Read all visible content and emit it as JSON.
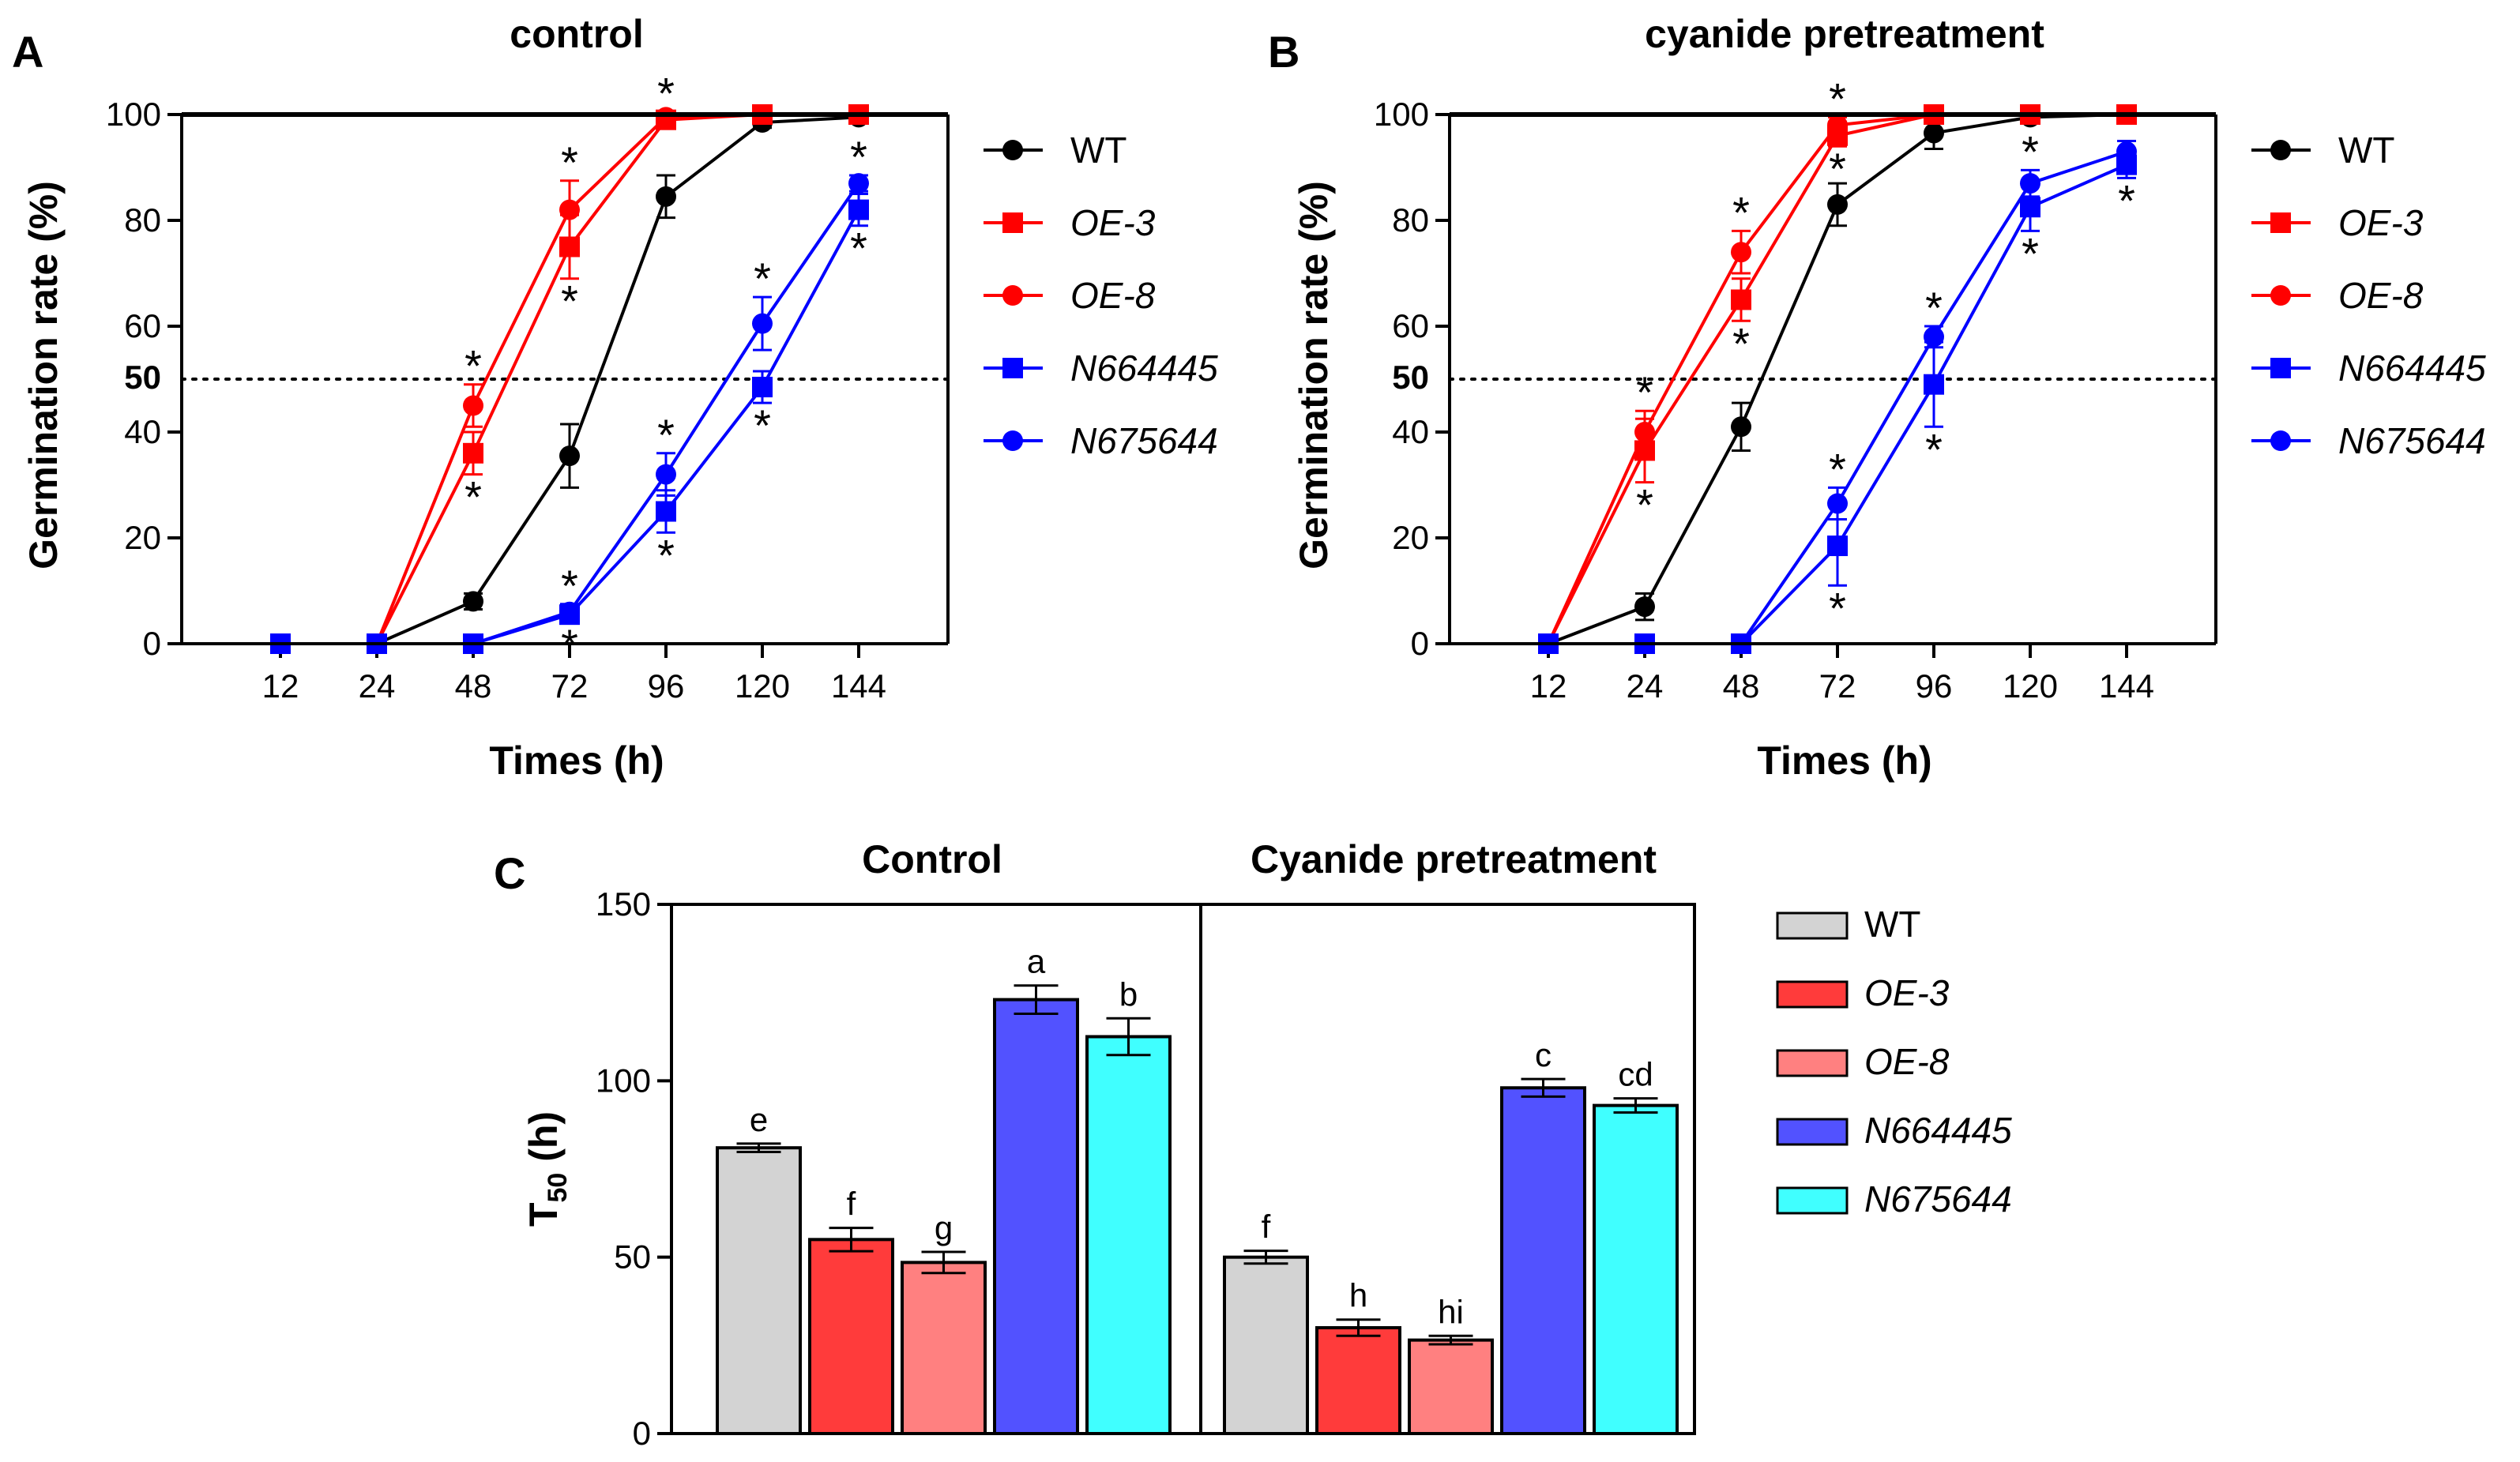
{
  "chart_data": [
    {
      "panel": "A",
      "type": "line",
      "title": "control",
      "xlabel": "Times (h)",
      "ylabel": "Germination rate (%)",
      "categories": [
        "12",
        "24",
        "48",
        "72",
        "96",
        "120",
        "144"
      ],
      "yticks": [
        "0",
        "20",
        "40",
        "50",
        "60",
        "80",
        "100"
      ],
      "ylim": [
        0,
        100
      ],
      "reference_line": 50,
      "series": [
        {
          "name": "WT",
          "italic": false,
          "color": "#000000",
          "marker": "circle",
          "values": [
            0,
            0,
            8,
            35.5,
            84.5,
            98.5,
            99.5
          ],
          "err": [
            0,
            0,
            1.5,
            6,
            4,
            1,
            0.5
          ],
          "stars": [],
          "star_pos": []
        },
        {
          "name": "OE-3",
          "italic": true,
          "color": "#ff0000",
          "marker": "square",
          "values": [
            0,
            0,
            36,
            75,
            99,
            100,
            100
          ],
          "err": [
            0,
            0,
            4,
            6,
            1,
            0,
            0
          ],
          "stars": [
            2,
            3
          ],
          "star_pos": [
            "below",
            "below"
          ]
        },
        {
          "name": "OE-8",
          "italic": true,
          "color": "#ff0000",
          "marker": "circle",
          "values": [
            0,
            0,
            45,
            82,
            99.5,
            100,
            100
          ],
          "err": [
            0,
            0,
            4,
            5.5,
            1,
            0,
            0
          ],
          "stars": [
            2,
            3,
            4
          ],
          "star_pos": [
            "above",
            "above",
            "above"
          ]
        },
        {
          "name": "N664445",
          "italic": true,
          "color": "#0000ff",
          "marker": "square",
          "values": [
            0,
            0,
            0,
            5.5,
            25,
            48.5,
            82
          ],
          "err": [
            0,
            0,
            0,
            1.5,
            4,
            3,
            3
          ],
          "stars": [
            3,
            4,
            5,
            6
          ],
          "star_pos": [
            "below",
            "below",
            "below",
            "below"
          ]
        },
        {
          "name": "N675644",
          "italic": true,
          "color": "#0000ff",
          "marker": "circle",
          "values": [
            0,
            0,
            0,
            6,
            32,
            60.5,
            87
          ],
          "err": [
            0,
            0,
            0,
            1.5,
            4,
            5,
            1.5
          ],
          "stars": [
            3,
            4,
            5,
            6
          ],
          "star_pos": [
            "above",
            "above",
            "above",
            "above"
          ]
        }
      ]
    },
    {
      "panel": "B",
      "type": "line",
      "title": "cyanide pretreatment",
      "xlabel": "Times (h)",
      "ylabel": "Germination rate (%)",
      "categories": [
        "12",
        "24",
        "48",
        "72",
        "96",
        "120",
        "144"
      ],
      "yticks": [
        "0",
        "20",
        "40",
        "50",
        "60",
        "80",
        "100"
      ],
      "ylim": [
        0,
        100
      ],
      "reference_line": 50,
      "series": [
        {
          "name": "WT",
          "italic": false,
          "color": "#000000",
          "marker": "circle",
          "values": [
            0,
            7,
            41,
            83,
            96.5,
            99.5,
            100
          ],
          "err": [
            0,
            2.5,
            4.5,
            4,
            3,
            1,
            0.5
          ],
          "stars": [],
          "star_pos": []
        },
        {
          "name": "OE-3",
          "italic": true,
          "color": "#ff0000",
          "marker": "square",
          "values": [
            0,
            36.5,
            65,
            96,
            100,
            100,
            100
          ],
          "err": [
            0,
            6,
            4,
            2,
            0,
            0,
            0
          ],
          "stars": [
            1,
            2,
            3
          ],
          "star_pos": [
            "below",
            "below",
            "below"
          ]
        },
        {
          "name": "OE-8",
          "italic": true,
          "color": "#ff0000",
          "marker": "circle",
          "values": [
            0,
            40,
            74,
            98,
            100,
            100,
            100
          ],
          "err": [
            0,
            4,
            4,
            1.5,
            0,
            0,
            0
          ],
          "stars": [
            1,
            2,
            3
          ],
          "star_pos": [
            "above",
            "above",
            "above"
          ]
        },
        {
          "name": "N664445",
          "italic": true,
          "color": "#0000ff",
          "marker": "square",
          "values": [
            0,
            0,
            0,
            18.5,
            49,
            82.5,
            90.5
          ],
          "err": [
            0,
            0,
            0,
            7.5,
            8,
            4.5,
            2.5
          ],
          "stars": [
            3,
            4,
            5,
            6
          ],
          "star_pos": [
            "below",
            "below",
            "below",
            "below"
          ]
        },
        {
          "name": "N675644",
          "italic": true,
          "color": "#0000ff",
          "marker": "circle",
          "values": [
            0,
            0,
            0,
            26.5,
            58,
            87,
            93
          ],
          "err": [
            0,
            0,
            0,
            3,
            2,
            2.5,
            2
          ],
          "stars": [
            3,
            4,
            5
          ],
          "star_pos": [
            "above",
            "above",
            "above"
          ]
        }
      ]
    },
    {
      "panel": "C",
      "type": "bar",
      "ylabel": "T",
      "ylabel_sub": "50",
      "ylabel_unit": " (h)",
      "yticks": [
        "0",
        "50",
        "100",
        "150"
      ],
      "ylim": [
        0,
        150
      ],
      "series_names": [
        "WT",
        "OE-3",
        "OE-8",
        "N664445",
        "N675644"
      ],
      "series_italic": [
        false,
        true,
        true,
        true,
        true
      ],
      "series_colors": [
        "#d3d3d3",
        "#ff3b3b",
        "#ff8080",
        "#5252ff",
        "#40ffff"
      ],
      "groups": [
        {
          "name": "Control",
          "values": [
            81,
            55,
            48.5,
            123,
            112.5
          ],
          "err": [
            1.2,
            3.3,
            3,
            4,
            5.2
          ],
          "letters": [
            "e",
            "f",
            "g",
            "a",
            "b"
          ]
        },
        {
          "name": "Cyanide pretreatment",
          "values": [
            50,
            30,
            26.5,
            98,
            93
          ],
          "err": [
            1.8,
            2.3,
            1.2,
            2.5,
            2
          ],
          "letters": [
            "f",
            "h",
            "hi",
            "c",
            "cd"
          ]
        }
      ]
    }
  ],
  "panels": {
    "a": {
      "letter": "A",
      "title": "control",
      "xlabel": "Times (h)",
      "ylabel": "Germination rate (%)"
    },
    "b": {
      "letter": "B",
      "title": "cyanide pretreatment",
      "xlabel": "Times (h)",
      "ylabel": "Germination rate (%)"
    },
    "c": {
      "letter": "C",
      "group1": "Control",
      "group2": "Cyanide pretreatment"
    }
  },
  "star_symbol": "*"
}
